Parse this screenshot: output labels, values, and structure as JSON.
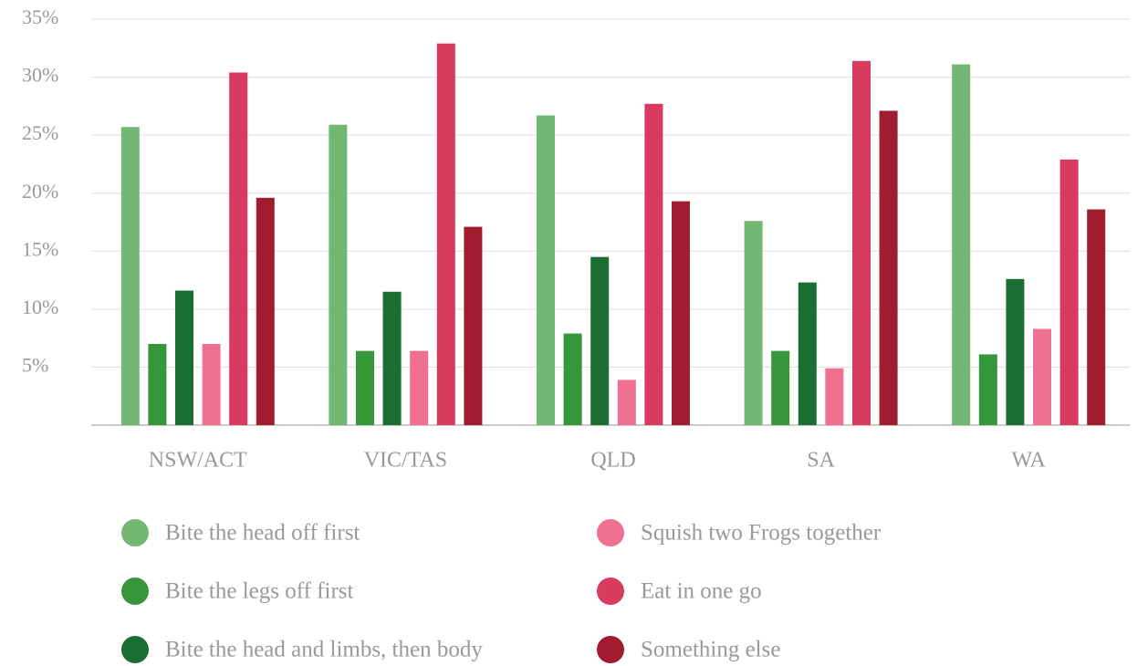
{
  "chart_data": {
    "type": "bar",
    "categories": [
      "NSW/ACT",
      "VIC/TAS",
      "QLD",
      "SA",
      "WA"
    ],
    "series": [
      {
        "name": "Bite the head off first",
        "color": "#72b772",
        "values": [
          25.7,
          25.9,
          26.7,
          17.6,
          31.1
        ]
      },
      {
        "name": "Bite the legs off first",
        "color": "#36963a",
        "values": [
          7.0,
          6.4,
          7.9,
          6.4,
          6.1
        ]
      },
      {
        "name": "Bite the head and limbs, then body",
        "color": "#1a6e31",
        "values": [
          11.6,
          11.5,
          14.5,
          12.3,
          12.6
        ]
      },
      {
        "name": "Squish two Frogs together",
        "color": "#ef7090",
        "values": [
          7.0,
          6.4,
          3.9,
          4.9,
          8.3
        ]
      },
      {
        "name": "Eat in one go",
        "color": "#d93b5e",
        "values": [
          30.4,
          32.9,
          27.7,
          31.4,
          22.9
        ]
      },
      {
        "name": "Something else",
        "color": "#a01c2f",
        "values": [
          19.6,
          17.1,
          19.3,
          27.1,
          18.6
        ]
      }
    ],
    "ylim": [
      0,
      35
    ],
    "yticks": [
      {
        "value": 5,
        "label": "5%"
      },
      {
        "value": 10,
        "label": "10%"
      },
      {
        "value": 15,
        "label": "15%"
      },
      {
        "value": 20,
        "label": "20%"
      },
      {
        "value": 25,
        "label": "25%"
      },
      {
        "value": 30,
        "label": "30%"
      },
      {
        "value": 35,
        "label": "35%"
      }
    ],
    "grid": true
  }
}
